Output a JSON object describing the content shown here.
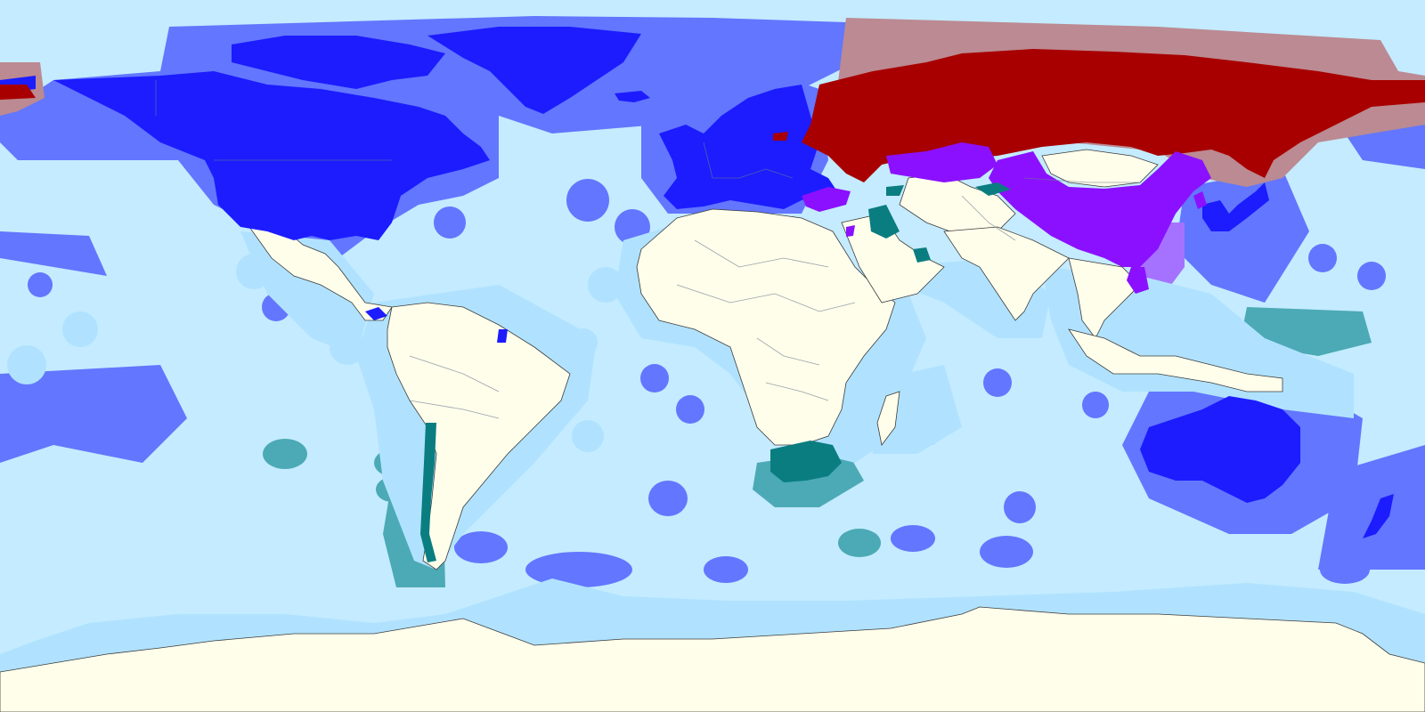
{
  "map": {
    "projection": "equirectangular",
    "colors": {
      "ocean": "#c4ebff",
      "unaligned_land": "#fffeeb",
      "unaligned_eez": "#b0e2ff",
      "western_bloc_land": "#1c1cff",
      "western_bloc_eez": "#6276ff",
      "russia_land": "#a80000",
      "russia_eez": "#bb8a92",
      "china_bloc_land": "#8b10ff",
      "china_bloc_eez": "#a572ff",
      "partner_land": "#0a7d80",
      "partner_eez": "#4baab5",
      "borders": "#6b7a8c",
      "unaligned_border": "#3c3c3c"
    },
    "groups": [
      {
        "id": "western-bloc",
        "land_color_key": "western_bloc_land",
        "eez_color_key": "western_bloc_eez"
      },
      {
        "id": "russia",
        "land_color_key": "russia_land",
        "eez_color_key": "russia_eez"
      },
      {
        "id": "china-bloc",
        "land_color_key": "china_bloc_land",
        "eez_color_key": "china_bloc_eez"
      },
      {
        "id": "partners",
        "land_color_key": "partner_land",
        "eez_color_key": "partner_eez"
      },
      {
        "id": "unaligned",
        "land_color_key": "unaligned_land",
        "eez_color_key": "unaligned_eez"
      }
    ]
  }
}
